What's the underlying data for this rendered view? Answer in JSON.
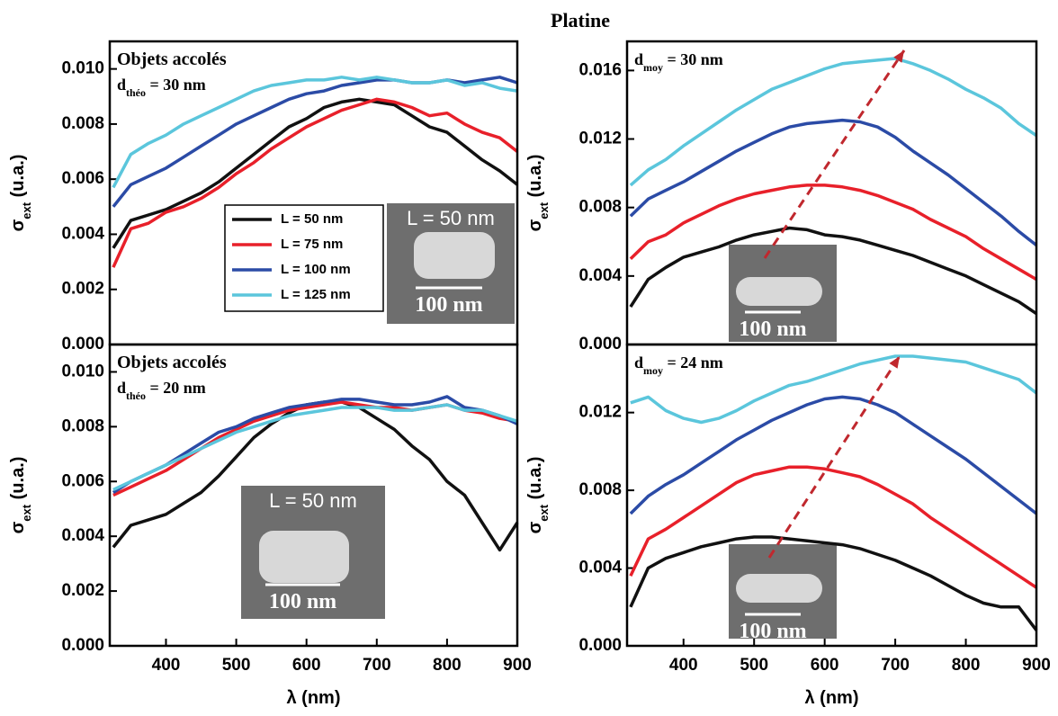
{
  "title": "Platine",
  "chart_data": [
    {
      "type": "line",
      "annotation": "Objets accolés",
      "d_label": [
        "d",
        "théo",
        " = 30 nm"
      ],
      "inset": {
        "label": "L = 50 nm",
        "scale": "100 nm"
      },
      "x": [
        325,
        350,
        375,
        400,
        425,
        450,
        475,
        500,
        525,
        550,
        575,
        600,
        625,
        650,
        675,
        700,
        725,
        750,
        775,
        800,
        825,
        850,
        875,
        900
      ],
      "xlim": [
        320,
        900
      ],
      "ylim": [
        0,
        0.011
      ],
      "ylabel": [
        "σ",
        "ext",
        " (u.a.)"
      ],
      "yticks": [
        {
          "value": 0,
          "label": "0.000"
        },
        0.002,
        0.004,
        0.006,
        0.008,
        {
          "value": 0.01,
          "label": "0.010"
        }
      ],
      "series": [
        {
          "name": "L = 50 nm",
          "color": "#111111",
          "values": [
            0.0035,
            0.0045,
            0.0047,
            0.0049,
            0.0052,
            0.0055,
            0.0059,
            0.0064,
            0.0069,
            0.0074,
            0.0079,
            0.0082,
            0.0086,
            0.0088,
            0.0089,
            0.0088,
            0.0087,
            0.0083,
            0.0079,
            0.0077,
            0.0072,
            0.0067,
            0.0063,
            0.0058
          ]
        },
        {
          "name": "L = 75 nm",
          "color": "#e8202a",
          "values": [
            0.0028,
            0.0042,
            0.0044,
            0.0048,
            0.005,
            0.0053,
            0.0057,
            0.0062,
            0.0066,
            0.0071,
            0.0075,
            0.0079,
            0.0082,
            0.0085,
            0.0087,
            0.0089,
            0.0088,
            0.0086,
            0.0083,
            0.0084,
            0.008,
            0.0077,
            0.0075,
            0.007
          ]
        },
        {
          "name": "L = 100 nm",
          "color": "#2b4ba6",
          "values": [
            0.005,
            0.0058,
            0.0061,
            0.0064,
            0.0068,
            0.0072,
            0.0076,
            0.008,
            0.0083,
            0.0086,
            0.0089,
            0.0091,
            0.0092,
            0.0094,
            0.0095,
            0.0096,
            0.0096,
            0.0095,
            0.0095,
            0.0096,
            0.0095,
            0.0096,
            0.0097,
            0.0095
          ]
        },
        {
          "name": "L = 125 nm",
          "color": "#5bc6dc",
          "values": [
            0.0057,
            0.0069,
            0.0073,
            0.0076,
            0.008,
            0.0083,
            0.0086,
            0.0089,
            0.0092,
            0.0094,
            0.0095,
            0.0096,
            0.0096,
            0.0097,
            0.0096,
            0.0097,
            0.0096,
            0.0095,
            0.0095,
            0.0096,
            0.0094,
            0.0095,
            0.0093,
            0.0092
          ]
        }
      ]
    },
    {
      "type": "line",
      "annotation": "Objets accolés",
      "d_label": [
        "d",
        "théo",
        " = 20 nm"
      ],
      "inset": {
        "label": "L = 50 nm",
        "scale": "100 nm"
      },
      "x": [
        325,
        350,
        375,
        400,
        425,
        450,
        475,
        500,
        525,
        550,
        575,
        600,
        625,
        650,
        675,
        700,
        725,
        750,
        775,
        800,
        825,
        850,
        875,
        900
      ],
      "xlim": [
        320,
        900
      ],
      "ylim": [
        0,
        0.011
      ],
      "xticks": [
        400,
        500,
        600,
        700,
        800,
        900
      ],
      "xlabel": "λ (nm)",
      "ylabel": [
        "σ",
        "ext",
        " (u.a.)"
      ],
      "yticks": [
        {
          "value": 0,
          "label": "0.000"
        },
        0.002,
        0.004,
        0.006,
        0.008,
        {
          "value": 0.01,
          "label": "0.010"
        }
      ],
      "series": [
        {
          "color": "#111111",
          "values": [
            0.0036,
            0.0044,
            0.0046,
            0.0048,
            0.0052,
            0.0056,
            0.0062,
            0.0069,
            0.0076,
            0.0081,
            0.0085,
            0.0088,
            0.0089,
            0.0089,
            0.0087,
            0.0083,
            0.0079,
            0.0073,
            0.0068,
            0.006,
            0.0055,
            0.0045,
            0.0035,
            0.0045
          ]
        },
        {
          "color": "#e8202a",
          "values": [
            0.0055,
            0.0058,
            0.0061,
            0.0064,
            0.0068,
            0.0072,
            0.0076,
            0.0079,
            0.0082,
            0.0084,
            0.0086,
            0.0087,
            0.0088,
            0.0089,
            0.0088,
            0.0087,
            0.0087,
            0.0086,
            0.0087,
            0.0088,
            0.0086,
            0.0085,
            0.0083,
            0.0082
          ]
        },
        {
          "color": "#2b4ba6",
          "values": [
            0.0056,
            0.006,
            0.0063,
            0.0066,
            0.007,
            0.0074,
            0.0078,
            0.008,
            0.0083,
            0.0085,
            0.0087,
            0.0088,
            0.0089,
            0.009,
            0.009,
            0.0089,
            0.0088,
            0.0088,
            0.0089,
            0.0091,
            0.0087,
            0.0086,
            0.0084,
            0.0081
          ]
        },
        {
          "color": "#5bc6dc",
          "values": [
            0.0057,
            0.006,
            0.0063,
            0.0066,
            0.0069,
            0.0072,
            0.0075,
            0.0078,
            0.008,
            0.0082,
            0.0084,
            0.0085,
            0.0086,
            0.0087,
            0.0087,
            0.0087,
            0.0086,
            0.0086,
            0.0087,
            0.0088,
            0.0086,
            0.0086,
            0.0084,
            0.0082
          ]
        }
      ]
    },
    {
      "type": "line",
      "d_label": [
        "d",
        "moy",
        " = 30 nm"
      ],
      "inset": {
        "scale": "100 nm"
      },
      "x": [
        325,
        350,
        375,
        400,
        425,
        450,
        475,
        500,
        525,
        550,
        575,
        600,
        625,
        650,
        675,
        700,
        725,
        750,
        775,
        800,
        825,
        850,
        875,
        900
      ],
      "xlim": [
        320,
        900
      ],
      "ylim": [
        0,
        0.0177
      ],
      "ylabel": [
        "σ",
        "ext",
        " (u.a.)"
      ],
      "yticks": [
        {
          "value": 0,
          "label": "0.000"
        },
        0.004,
        0.008,
        0.012,
        0.016
      ],
      "series": [
        {
          "color": "#111111",
          "values": [
            0.0022,
            0.0038,
            0.0045,
            0.0051,
            0.0054,
            0.0057,
            0.0061,
            0.0064,
            0.0066,
            0.0068,
            0.0067,
            0.0064,
            0.0063,
            0.0061,
            0.0058,
            0.0055,
            0.0052,
            0.0048,
            0.0044,
            0.004,
            0.0035,
            0.003,
            0.0025,
            0.0018
          ]
        },
        {
          "color": "#e8202a",
          "values": [
            0.005,
            0.006,
            0.0064,
            0.0071,
            0.0076,
            0.0081,
            0.0085,
            0.0088,
            0.009,
            0.0092,
            0.0093,
            0.0093,
            0.0092,
            0.009,
            0.0087,
            0.0083,
            0.0079,
            0.0073,
            0.0068,
            0.0063,
            0.0056,
            0.005,
            0.0044,
            0.0038
          ]
        },
        {
          "color": "#2b4ba6",
          "values": [
            0.0075,
            0.0085,
            0.009,
            0.0095,
            0.0101,
            0.0107,
            0.0113,
            0.0118,
            0.0123,
            0.0127,
            0.0129,
            0.013,
            0.0131,
            0.013,
            0.0127,
            0.0121,
            0.0113,
            0.0106,
            0.0099,
            0.0091,
            0.0083,
            0.0075,
            0.0066,
            0.0058
          ]
        },
        {
          "color": "#5bc6dc",
          "values": [
            0.0093,
            0.0102,
            0.0108,
            0.0116,
            0.0123,
            0.013,
            0.0137,
            0.0143,
            0.0149,
            0.0153,
            0.0157,
            0.0161,
            0.0164,
            0.0165,
            0.0166,
            0.0167,
            0.0164,
            0.016,
            0.0155,
            0.0149,
            0.0144,
            0.0138,
            0.0129,
            0.0122
          ]
        }
      ]
    },
    {
      "type": "line",
      "d_label": [
        "d",
        "moy",
        " = 24 nm"
      ],
      "inset": {
        "scale": "100 nm"
      },
      "x": [
        325,
        350,
        375,
        400,
        425,
        450,
        475,
        500,
        525,
        550,
        575,
        600,
        625,
        650,
        675,
        700,
        725,
        750,
        775,
        800,
        825,
        850,
        875,
        900
      ],
      "xlim": [
        320,
        900
      ],
      "ylim": [
        0,
        0.0155
      ],
      "xticks": [
        400,
        500,
        600,
        700,
        800,
        900
      ],
      "xlabel": "λ (nm)",
      "ylabel": [
        "σ",
        "ext",
        " (u.a.)"
      ],
      "yticks": [
        {
          "value": 0,
          "label": "0.000"
        },
        0.004,
        0.008,
        0.012
      ],
      "series": [
        {
          "color": "#111111",
          "values": [
            0.002,
            0.004,
            0.0045,
            0.0048,
            0.0051,
            0.0053,
            0.0055,
            0.0056,
            0.0056,
            0.0055,
            0.0054,
            0.0053,
            0.0052,
            0.005,
            0.0047,
            0.0044,
            0.004,
            0.0036,
            0.0031,
            0.0026,
            0.0022,
            0.002,
            0.002,
            0.0008
          ]
        },
        {
          "color": "#e8202a",
          "values": [
            0.0036,
            0.0055,
            0.006,
            0.0066,
            0.0072,
            0.0078,
            0.0084,
            0.0088,
            0.009,
            0.0092,
            0.0092,
            0.0091,
            0.0089,
            0.0087,
            0.0083,
            0.0078,
            0.0073,
            0.0066,
            0.006,
            0.0054,
            0.0048,
            0.0042,
            0.0036,
            0.003
          ]
        },
        {
          "color": "#2b4ba6",
          "values": [
            0.0068,
            0.0077,
            0.0083,
            0.0088,
            0.0094,
            0.01,
            0.0106,
            0.0111,
            0.0116,
            0.012,
            0.0124,
            0.0127,
            0.0128,
            0.0127,
            0.0124,
            0.012,
            0.0114,
            0.0108,
            0.0102,
            0.0096,
            0.0089,
            0.0082,
            0.0075,
            0.0068
          ]
        },
        {
          "color": "#5bc6dc",
          "values": [
            0.0125,
            0.0128,
            0.0121,
            0.0117,
            0.0115,
            0.0117,
            0.0121,
            0.0126,
            0.013,
            0.0134,
            0.0136,
            0.0139,
            0.0142,
            0.0145,
            0.0147,
            0.0149,
            0.0149,
            0.0148,
            0.0147,
            0.0146,
            0.0143,
            0.014,
            0.0137,
            0.013
          ]
        }
      ]
    }
  ]
}
